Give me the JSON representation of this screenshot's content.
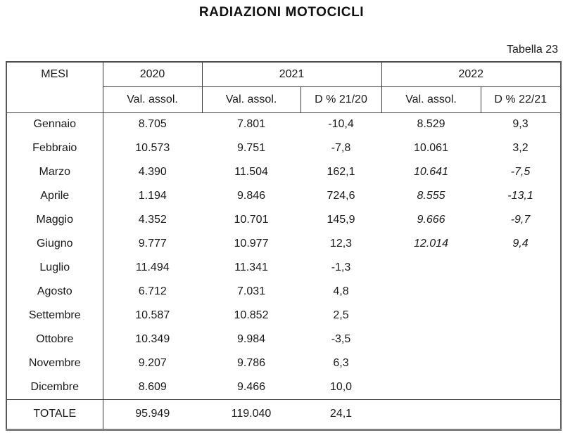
{
  "title": "RADIAZIONI MOTOCICLI",
  "table_label": "Tabella 23",
  "table": {
    "mesi_header": "MESI",
    "years": [
      "2020",
      "2021",
      "2022"
    ],
    "subheaders": [
      "Val. assol.",
      "Val. assol.",
      "D % 21/20",
      "Val. assol.",
      "D % 22/21"
    ],
    "rows": [
      {
        "month": "Gennaio",
        "v2020": "8.705",
        "v2021": "7.801",
        "d2120": "-10,4",
        "v2022": "8.529",
        "d2221": "9,3",
        "italic2022": false
      },
      {
        "month": "Febbraio",
        "v2020": "10.573",
        "v2021": "9.751",
        "d2120": "-7,8",
        "v2022": "10.061",
        "d2221": "3,2",
        "italic2022": false
      },
      {
        "month": "Marzo",
        "v2020": "4.390",
        "v2021": "11.504",
        "d2120": "162,1",
        "v2022": "10.641",
        "d2221": "-7,5",
        "italic2022": true
      },
      {
        "month": "Aprile",
        "v2020": "1.194",
        "v2021": "9.846",
        "d2120": "724,6",
        "v2022": "8.555",
        "d2221": "-13,1",
        "italic2022": true
      },
      {
        "month": "Maggio",
        "v2020": "4.352",
        "v2021": "10.701",
        "d2120": "145,9",
        "v2022": "9.666",
        "d2221": "-9,7",
        "italic2022": true
      },
      {
        "month": "Giugno",
        "v2020": "9.777",
        "v2021": "10.977",
        "d2120": "12,3",
        "v2022": "12.014",
        "d2221": "9,4",
        "italic2022": true
      },
      {
        "month": "Luglio",
        "v2020": "11.494",
        "v2021": "11.341",
        "d2120": "-1,3",
        "v2022": "",
        "d2221": "",
        "italic2022": false
      },
      {
        "month": "Agosto",
        "v2020": "6.712",
        "v2021": "7.031",
        "d2120": "4,8",
        "v2022": "",
        "d2221": "",
        "italic2022": false
      },
      {
        "month": "Settembre",
        "v2020": "10.587",
        "v2021": "10.852",
        "d2120": "2,5",
        "v2022": "",
        "d2221": "",
        "italic2022": false
      },
      {
        "month": "Ottobre",
        "v2020": "10.349",
        "v2021": "9.984",
        "d2120": "-3,5",
        "v2022": "",
        "d2221": "",
        "italic2022": false
      },
      {
        "month": "Novembre",
        "v2020": "9.207",
        "v2021": "9.786",
        "d2120": "6,3",
        "v2022": "",
        "d2221": "",
        "italic2022": false
      },
      {
        "month": "Dicembre",
        "v2020": "8.609",
        "v2021": "9.466",
        "d2120": "10,0",
        "v2022": "",
        "d2221": "",
        "italic2022": false
      }
    ],
    "total": {
      "label": "TOTALE",
      "v2020": "95.949",
      "v2021": "119.040",
      "d2120": "24,1",
      "v2022": "",
      "d2221": ""
    }
  }
}
